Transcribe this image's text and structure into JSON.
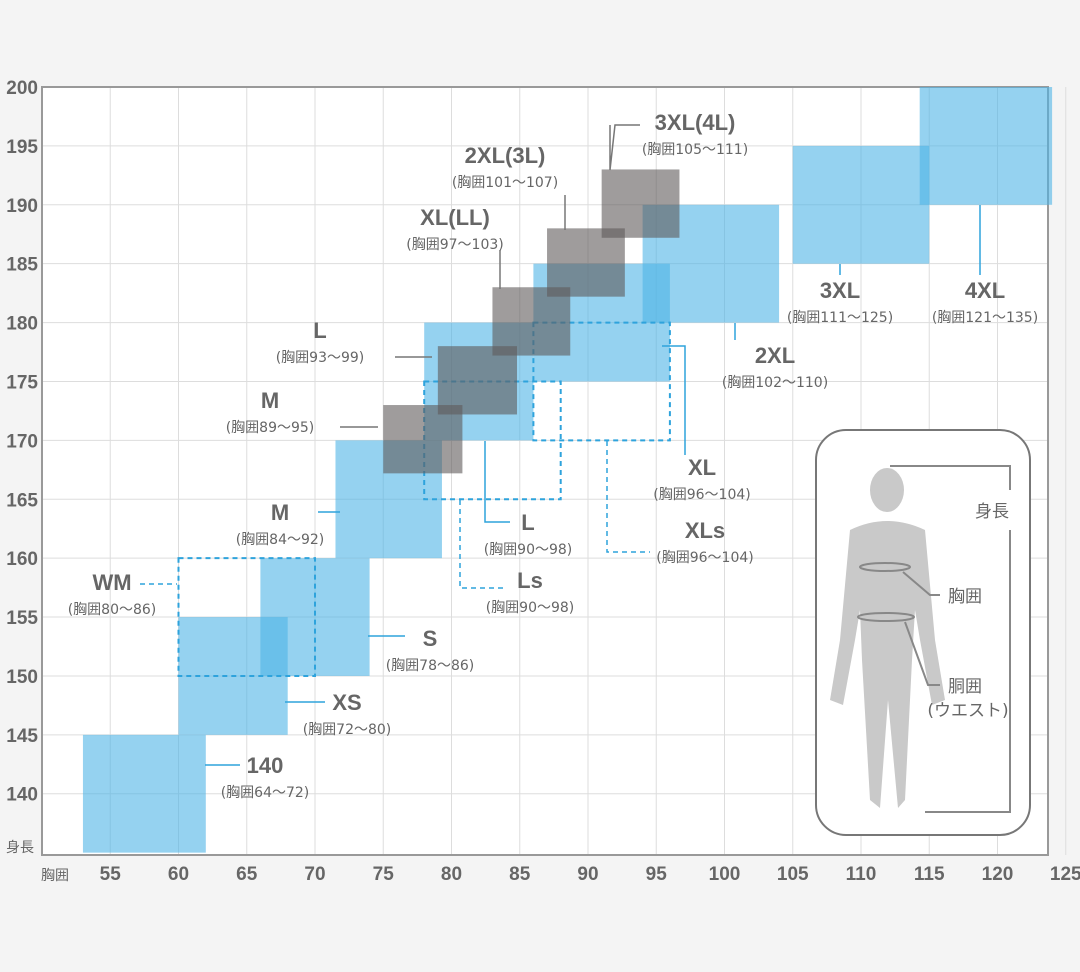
{
  "chart_data": {
    "type": "heatmap",
    "title": "",
    "xlabel": "胸囲",
    "ylabel": "身長",
    "xlim": [
      50,
      123.7
    ],
    "ylim": [
      134.8,
      200
    ],
    "xticks": [
      "55",
      "60",
      "65",
      "70",
      "75",
      "80",
      "85",
      "90",
      "95",
      "100",
      "105",
      "110",
      "115",
      "120",
      "125"
    ],
    "yticks": [
      "140",
      "145",
      "150",
      "155",
      "160",
      "165",
      "170",
      "175",
      "180",
      "185",
      "190",
      "195",
      "200"
    ],
    "grid": true,
    "series": [
      {
        "name": "140",
        "sub": "(胸囲64～72)",
        "style": "blue",
        "x": [
          53,
          62
        ],
        "y": [
          135,
          145
        ]
      },
      {
        "name": "XS",
        "sub": "(胸囲72～80)",
        "style": "blue",
        "x": [
          60,
          68
        ],
        "y": [
          145,
          155
        ]
      },
      {
        "name": "S",
        "sub": "(胸囲78～86)",
        "style": "blue",
        "x": [
          66,
          74
        ],
        "y": [
          150,
          160
        ]
      },
      {
        "name": "M",
        "sub": "(胸囲84～92)",
        "style": "blue",
        "x": [
          71.5,
          79.3
        ],
        "y": [
          160,
          170
        ]
      },
      {
        "name": "L",
        "sub": "(胸囲90～98)",
        "style": "blue",
        "x": [
          78,
          86
        ],
        "y": [
          170,
          180
        ]
      },
      {
        "name": "XL",
        "sub": "(胸囲96～104)",
        "style": "blue",
        "x": [
          86,
          96
        ],
        "y": [
          175,
          185
        ]
      },
      {
        "name": "2XL",
        "sub": "(胸囲102～110)",
        "style": "blue",
        "x": [
          94,
          104
        ],
        "y": [
          180,
          190
        ]
      },
      {
        "name": "3XL",
        "sub": "(胸囲111～125)",
        "style": "blue",
        "x": [
          105,
          115
        ],
        "y": [
          185,
          195
        ]
      },
      {
        "name": "4XL",
        "sub": "(胸囲121～135)",
        "style": "blue",
        "x": [
          114.3,
          124
        ],
        "y": [
          190,
          200
        ]
      },
      {
        "name": "WM",
        "sub": "(胸囲80～86)",
        "style": "dashed",
        "x": [
          60,
          70
        ],
        "y": [
          150,
          160
        ]
      },
      {
        "name": "Ls",
        "sub": "(胸囲90～98)",
        "style": "dashed",
        "x": [
          78,
          88
        ],
        "y": [
          165,
          175
        ]
      },
      {
        "name": "XLs",
        "sub": "(胸囲96～104)",
        "style": "dashed",
        "x": [
          86,
          96
        ],
        "y": [
          170,
          180
        ]
      },
      {
        "name": "M",
        "sub": "(胸囲89～95)",
        "style": "gray",
        "x": [
          75,
          80.8
        ],
        "y": [
          167.2,
          173
        ]
      },
      {
        "name": "L",
        "sub": "(胸囲93～99)",
        "style": "gray",
        "x": [
          79,
          84.8
        ],
        "y": [
          172.2,
          178
        ]
      },
      {
        "name": "XL(LL)",
        "sub": "(胸囲97～103)",
        "style": "gray",
        "x": [
          83,
          88.7
        ],
        "y": [
          177.2,
          183
        ]
      },
      {
        "name": "2XL(3L)",
        "sub": "(胸囲101～107)",
        "style": "gray",
        "x": [
          87,
          92.7
        ],
        "y": [
          182.2,
          188
        ]
      },
      {
        "name": "3XL(4L)",
        "sub": "(胸囲105～111)",
        "style": "gray",
        "x": [
          91,
          96.7
        ],
        "y": [
          187.2,
          193
        ]
      }
    ]
  },
  "figure": {
    "height": "身長",
    "chest": "胸囲",
    "waist": "胴囲",
    "waist_note": "(ウエスト)"
  },
  "colors": {
    "blue": "#4fb4e6",
    "gray": "#5f5a5a",
    "dashed": "#2ea3dc",
    "grid": "#dddddd",
    "text": "#666666"
  }
}
